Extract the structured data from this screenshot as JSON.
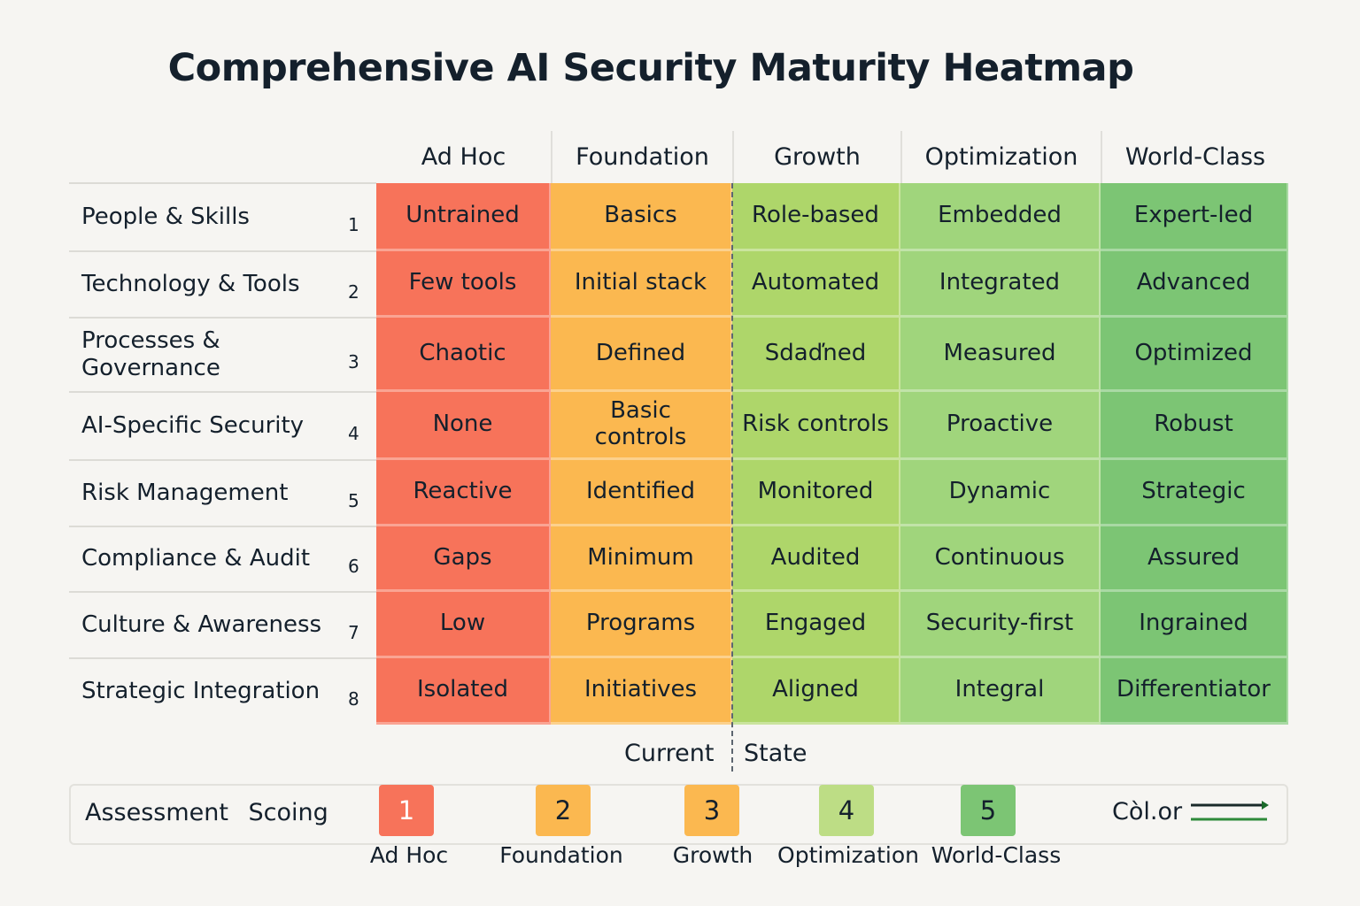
{
  "title": "Comprehensive AI Security Maturity Heatmap",
  "chart_data": {
    "type": "heatmap",
    "title": "Comprehensive AI Security Maturity Heatmap",
    "columns": [
      "Ad Hoc",
      "Foundation",
      "Growth",
      "Optimization",
      "World-Class"
    ],
    "column_levels": [
      1,
      2,
      3,
      4,
      5
    ],
    "column_colors": [
      "#f7735a",
      "#fbb850",
      "#aed66a",
      "#a0d57c",
      "#7cc574"
    ],
    "rows": [
      {
        "label": "People & Skills",
        "number": "1",
        "cells": [
          "Untrained",
          "Basics",
          "Role-based",
          "Embedded",
          "Expert-led"
        ]
      },
      {
        "label": "Technology & Tools",
        "number": "2",
        "cells": [
          "Few tools",
          "Initial stack",
          "Automated",
          "Integrated",
          "Advanced"
        ]
      },
      {
        "label": "Processes & Governance",
        "number": "3",
        "cells": [
          "Chaotic",
          "Defined",
          "Sdaďned",
          "Measured",
          "Optimized"
        ]
      },
      {
        "label": "AI-Specific Security",
        "number": "4",
        "cells": [
          "None",
          "Basic controls",
          "Risk controls",
          "Proactive",
          "Robust"
        ]
      },
      {
        "label": "Risk Management",
        "number": "5",
        "cells": [
          "Reactive",
          "Identified",
          "Monitored",
          "Dynamic",
          "Strategic"
        ]
      },
      {
        "label": "Compliance & Audit",
        "number": "6",
        "cells": [
          "Gaps",
          "Minimum",
          "Audited",
          "Continuous",
          "Assured"
        ]
      },
      {
        "label": "Culture & Awareness",
        "number": "7",
        "cells": [
          "Low",
          "Programs",
          "Engaged",
          "Security-first",
          "Ingrained"
        ]
      },
      {
        "label": "Strategic Integration",
        "number": "8",
        "cells": [
          "Isolated",
          "Initiatives",
          "Aligned",
          "Integral",
          "Differentiator"
        ]
      }
    ],
    "current_state_marker": {
      "label_left": "Current",
      "label_right": "State",
      "between": [
        "Foundation",
        "Growth"
      ]
    }
  },
  "legend": {
    "title": "Assessment Scoing",
    "items": [
      {
        "score": "1",
        "label": "Ad Hoc",
        "color": "#f7735a"
      },
      {
        "score": "2",
        "label": "Foundation",
        "color": "#fbb850"
      },
      {
        "score": "3",
        "label": "Growth",
        "color": "#fbb850"
      },
      {
        "score": "4",
        "label": "Optimization",
        "color": "#bddd85"
      },
      {
        "score": "5",
        "label": "World-Class",
        "color": "#7cc574"
      }
    ],
    "color_label": "Còl.or"
  }
}
